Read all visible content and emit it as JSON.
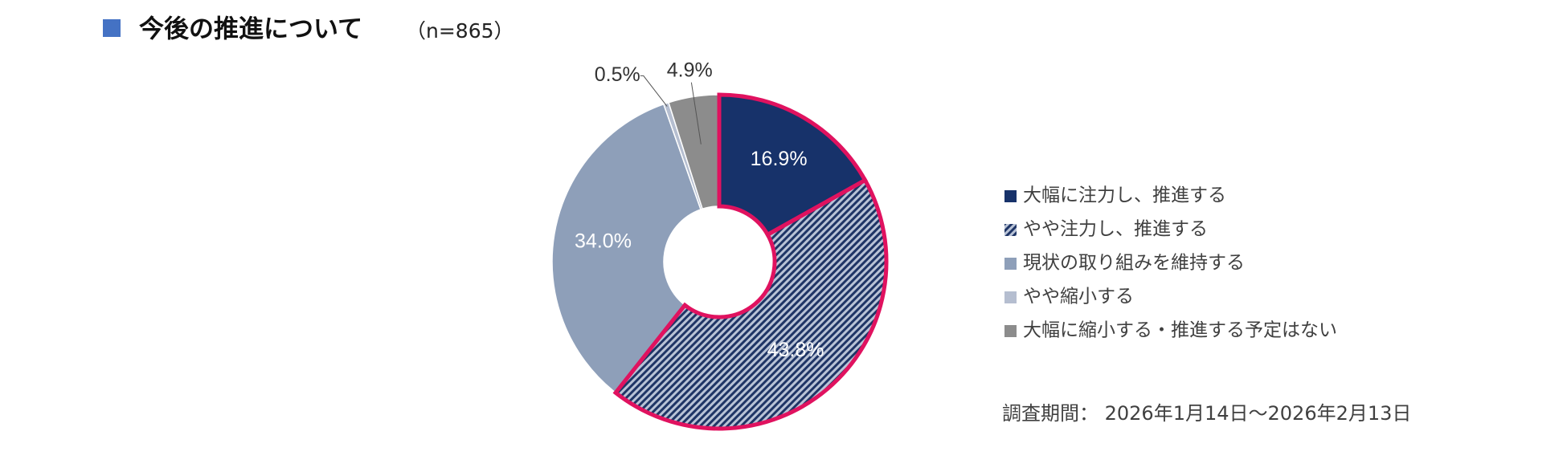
{
  "chart_data": {
    "type": "pie",
    "title": "今後の推進について",
    "subtitle": "（n=865）",
    "categories": [
      "大幅に注力し、推進する",
      "やや注力し、推進する",
      "現状の取り組みを維持する",
      "やや縮小する",
      "大幅に縮小する・推進する予定はない"
    ],
    "values": [
      16.9,
      43.8,
      34.0,
      0.5,
      4.9
    ],
    "value_labels": [
      "16.9%",
      "43.8%",
      "34.0%",
      "0.5%",
      "4.9%"
    ],
    "colors": [
      "#17326a",
      "#8b9bb6",
      "#8e9fb9",
      "#b5bed0",
      "#8c8c8c"
    ],
    "hatched": [
      false,
      true,
      false,
      false,
      false
    ],
    "highlighted": [
      true,
      true,
      false,
      false,
      false
    ],
    "highlight_color": "#e0125f",
    "annotation": "調査期間： 2026年1月14日～2026年2月13日"
  }
}
